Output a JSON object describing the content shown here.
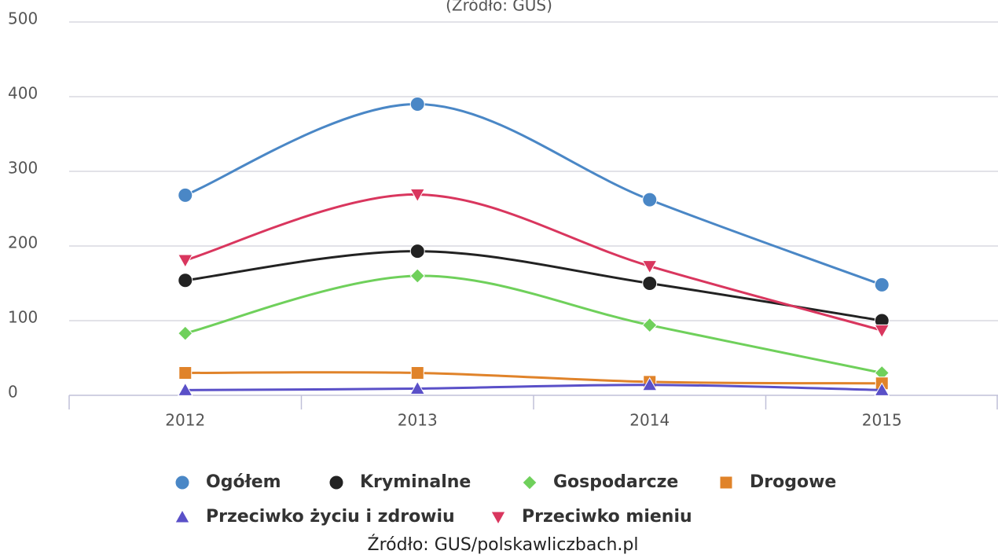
{
  "chart_data": {
    "type": "line",
    "subtitle": "(Źródło: GUS)",
    "caption": "Źródło: GUS/polskawliczbach.pl",
    "categories": [
      "2012",
      "2013",
      "2014",
      "2015"
    ],
    "ylim": [
      0,
      500
    ],
    "yticks": [
      0,
      100,
      200,
      300,
      400,
      500
    ],
    "grid": true,
    "smooth": true,
    "series": [
      {
        "name": "Ogółem",
        "color": "#4a87c6",
        "marker": "circle",
        "values": [
          268,
          390,
          262,
          148
        ]
      },
      {
        "name": "Kryminalne",
        "color": "#222222",
        "marker": "circle",
        "values": [
          154,
          193,
          150,
          100
        ]
      },
      {
        "name": "Gospodarcze",
        "color": "#6fd05b",
        "marker": "diamond",
        "values": [
          83,
          160,
          94,
          30
        ]
      },
      {
        "name": "Drogowe",
        "color": "#e0832a",
        "marker": "square",
        "values": [
          30,
          30,
          18,
          16
        ]
      },
      {
        "name": "Przeciwko życiu i zdrowiu",
        "color": "#5a50c8",
        "marker": "triangle",
        "values": [
          7,
          9,
          14,
          7
        ]
      },
      {
        "name": "Przeciwko mieniu",
        "color": "#d9365e",
        "marker": "triangle-down",
        "values": [
          181,
          269,
          173,
          87
        ]
      }
    ]
  }
}
